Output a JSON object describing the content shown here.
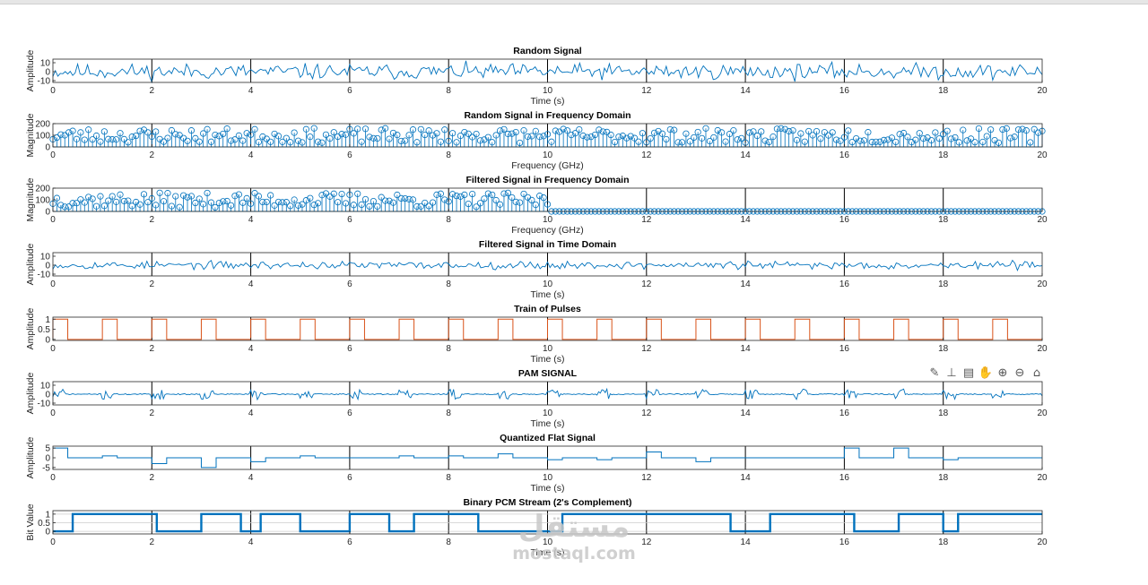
{
  "toolbar": {
    "icons": [
      "brush-icon",
      "data-tips-icon",
      "save-icon",
      "pan-icon",
      "zoom-in-icon",
      "zoom-out-icon",
      "home-icon"
    ]
  },
  "watermark": {
    "logo": "مستقل",
    "url": "mostaql.com"
  },
  "colors": {
    "blue": "#0072bd",
    "red": "#d95319",
    "axis": "#262626",
    "grid": "#000000"
  },
  "chart_data": [
    {
      "type": "line",
      "title": "Random Signal",
      "xlabel": "Time (s)",
      "ylabel": "Amplitude",
      "xlim": [
        0,
        20
      ],
      "ylim": [
        -12,
        14
      ],
      "yticks": [
        -10,
        0,
        10
      ],
      "ytick_labels": [
        "-10",
        "0",
        "10"
      ],
      "xticks": [
        0,
        2,
        4,
        6,
        8,
        10,
        12,
        14,
        16,
        18,
        20
      ],
      "vgrid": true,
      "generator": "noise",
      "amplitude": 10,
      "seed": 11
    },
    {
      "type": "stem",
      "title": "Random Signal in Frequency Domain",
      "xlabel": "Frequency (GHz)",
      "ylabel": "Magnitude",
      "xlim": [
        0,
        20
      ],
      "ylim": [
        0,
        200
      ],
      "yticks": [
        0,
        100,
        200
      ],
      "ytick_labels": [
        "0",
        "100",
        "200"
      ],
      "xticks": [
        0,
        2,
        4,
        6,
        8,
        10,
        12,
        14,
        16,
        18,
        20
      ],
      "vgrid": true,
      "generator": "spectrum",
      "cutoff": 20,
      "seed": 23
    },
    {
      "type": "stem",
      "title": "Filtered Signal in Frequency Domain",
      "xlabel": "Frequency (GHz)",
      "ylabel": "Magnitude",
      "xlim": [
        0,
        20
      ],
      "ylim": [
        0,
        200
      ],
      "yticks": [
        0,
        100,
        200
      ],
      "ytick_labels": [
        "0",
        "100",
        "200"
      ],
      "xticks": [
        0,
        2,
        4,
        6,
        8,
        10,
        12,
        14,
        16,
        18,
        20
      ],
      "vgrid": true,
      "generator": "spectrum",
      "cutoff": 10,
      "seed": 37
    },
    {
      "type": "line",
      "title": "Filtered Signal in Time Domain",
      "xlabel": "Time (s)",
      "ylabel": "Amplitude",
      "xlim": [
        0,
        20
      ],
      "ylim": [
        -12,
        14
      ],
      "yticks": [
        -10,
        0,
        10
      ],
      "ytick_labels": [
        "-10",
        "0",
        "10"
      ],
      "xticks": [
        0,
        2,
        4,
        6,
        8,
        10,
        12,
        14,
        16,
        18,
        20
      ],
      "vgrid": true,
      "generator": "noise",
      "amplitude": 5,
      "seed": 53
    },
    {
      "type": "step",
      "title": "Train of Pulses",
      "xlabel": "Time (s)",
      "ylabel": "Amplitude",
      "color": "red",
      "xlim": [
        0,
        20
      ],
      "ylim": [
        -0.05,
        1.1
      ],
      "yticks": [
        0,
        0.5,
        1
      ],
      "ytick_labels": [
        "0",
        "0.5",
        "1"
      ],
      "xticks": [
        0,
        2,
        4,
        6,
        8,
        10,
        12,
        14,
        16,
        18,
        20
      ],
      "vgrid": true,
      "generator": "pulses",
      "period": 1,
      "pulse_width": 0.3,
      "x0": 0,
      "levels": [
        1,
        0
      ]
    },
    {
      "type": "line",
      "title": "PAM SIGNAL",
      "xlabel": "Time (s)",
      "ylabel": "Amplitude",
      "xlim": [
        0,
        20
      ],
      "ylim": [
        -12,
        14
      ],
      "yticks": [
        -10,
        0,
        10
      ],
      "ytick_labels": [
        "-10",
        "0",
        "10"
      ],
      "xticks": [
        0,
        2,
        4,
        6,
        8,
        10,
        12,
        14,
        16,
        18,
        20
      ],
      "vgrid": true,
      "generator": "pam",
      "seed": 71
    },
    {
      "type": "step",
      "title": "Quantized Flat Signal",
      "xlabel": "Time (s)",
      "ylabel": "Amplitude",
      "xlim": [
        0,
        20
      ],
      "ylim": [
        -6,
        6
      ],
      "yticks": [
        -5,
        0,
        5
      ],
      "ytick_labels": [
        "-5",
        "0",
        "5"
      ],
      "xticks": [
        0,
        2,
        4,
        6,
        8,
        10,
        12,
        14,
        16,
        18,
        20
      ],
      "vgrid": true,
      "generator": "levels",
      "x": [
        0,
        0.3,
        1,
        1.3,
        2,
        2.3,
        3,
        3.3,
        4,
        4.3,
        5,
        5.3,
        6,
        6.3,
        7,
        7.3,
        8,
        8.3,
        9,
        9.3,
        10,
        10.3,
        11,
        11.3,
        12,
        12.3,
        13,
        13.3,
        14,
        14.3,
        15,
        15.3,
        16,
        16.3,
        17,
        17.3,
        18,
        18.3,
        19,
        19.3,
        20
      ],
      "y": [
        5,
        0,
        1,
        0,
        -3,
        0,
        -5,
        0,
        -2,
        0,
        1,
        0,
        0,
        0,
        1,
        0,
        1,
        0,
        2,
        0,
        -1,
        0,
        -1,
        0,
        3,
        0,
        -2,
        0,
        0,
        0,
        0,
        0,
        5,
        0,
        5,
        0,
        -1,
        0,
        0,
        0,
        0
      ]
    },
    {
      "type": "step",
      "title": "Binary PCM Stream (2's Complement)",
      "xlabel": "Time (s)",
      "ylabel": "Bit Value",
      "xlim": [
        0,
        20
      ],
      "ylim": [
        -0.15,
        1.2
      ],
      "yticks": [
        0,
        0.5,
        1
      ],
      "ytick_labels": [
        "0",
        "0.5",
        "1"
      ],
      "xticks": [
        0,
        2,
        4,
        6,
        8,
        10,
        12,
        14,
        16,
        18,
        20
      ],
      "vgrid": true,
      "hgrid": true,
      "thick": true,
      "generator": "levels",
      "x": [
        0,
        0.4,
        1.25,
        2.1,
        3,
        3.8,
        4.2,
        5.0,
        6.0,
        6.8,
        7.3,
        8.6,
        9.3,
        10.0,
        10.3,
        11.2,
        12.4,
        13.7,
        14.5,
        16.2,
        17.1,
        18.0,
        18.3,
        20
      ],
      "y": [
        0,
        1,
        1,
        0,
        1,
        0,
        1,
        0,
        1,
        0,
        1,
        0,
        0,
        0,
        1,
        1,
        1,
        0,
        1,
        0,
        1,
        0,
        1,
        1
      ]
    }
  ]
}
